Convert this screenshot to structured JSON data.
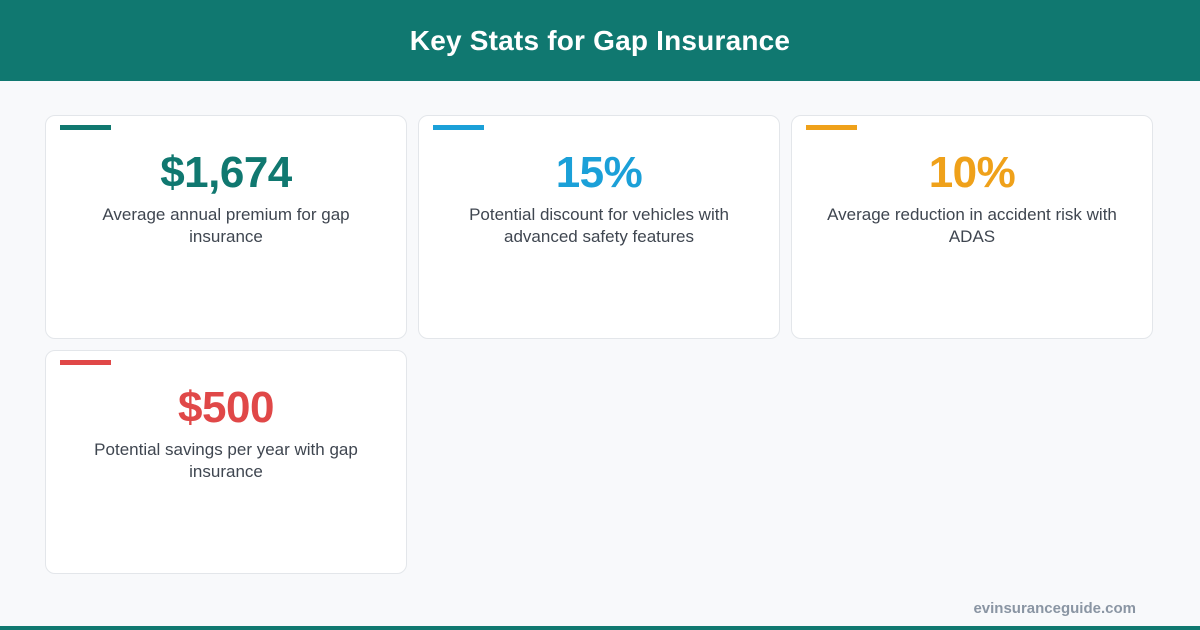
{
  "header": {
    "title": "Key Stats for Gap Insurance"
  },
  "colors": {
    "header_bg": "#107870",
    "teal": "#107870",
    "blue": "#1ba0d8",
    "orange": "#efa11a",
    "red": "#e04848"
  },
  "cards": [
    {
      "value": "$1,674",
      "label": "Average annual premium for gap insurance",
      "color": "#107870"
    },
    {
      "value": "15%",
      "label": "Potential discount for vehicles with advanced safety features",
      "color": "#1ba0d8"
    },
    {
      "value": "10%",
      "label": "Average reduction in accident risk with ADAS",
      "color": "#efa11a"
    },
    {
      "value": "$500",
      "label": "Potential savings per year with gap insurance",
      "color": "#e04848"
    }
  ],
  "footer": {
    "site": "evinsuranceguide.com"
  }
}
